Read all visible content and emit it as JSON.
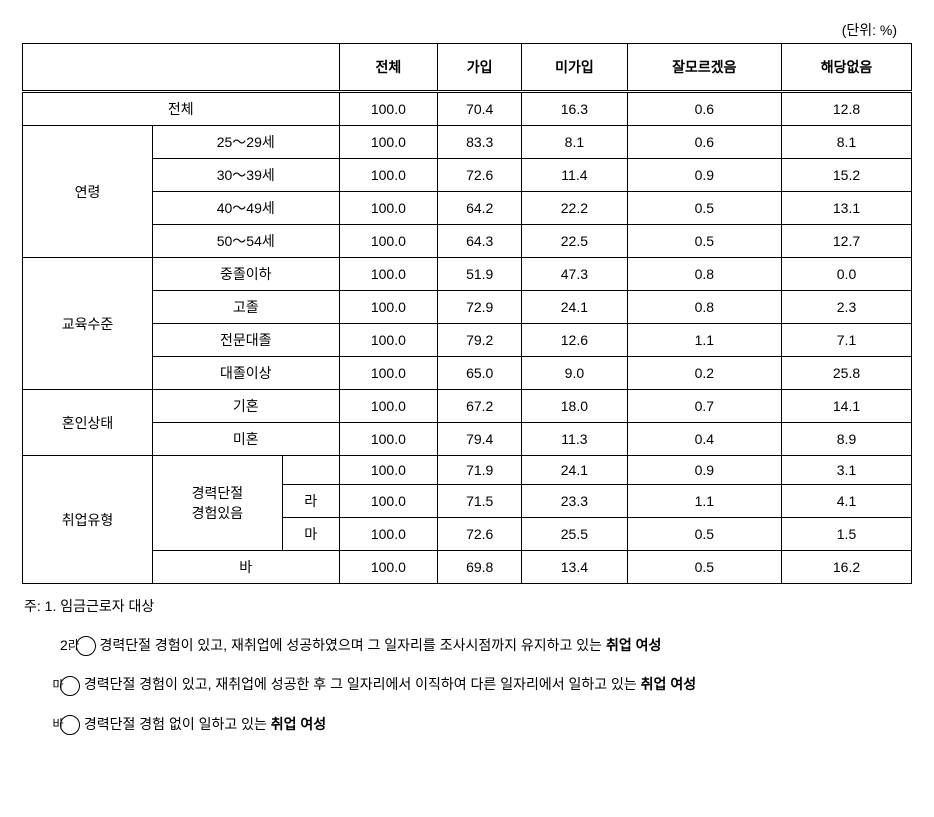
{
  "unit": "(단위: %)",
  "columns": [
    "전체",
    "가입",
    "미가입",
    "잘모르겠음",
    "해당없음"
  ],
  "rows": [
    {
      "group": null,
      "groupLabel": "전체",
      "groupColspan": 3,
      "label": null,
      "values": [
        "100.0",
        "70.4",
        "16.3",
        "0.6",
        "12.8"
      ]
    },
    {
      "group": "age",
      "groupLabel": "연령",
      "groupRowspan": 4,
      "label": "25～29세",
      "labelColspan": 2,
      "values": [
        "100.0",
        "83.3",
        "8.1",
        "0.6",
        "8.1"
      ]
    },
    {
      "group": "age",
      "label": "30～39세",
      "labelColspan": 2,
      "values": [
        "100.0",
        "72.6",
        "11.4",
        "0.9",
        "15.2"
      ]
    },
    {
      "group": "age",
      "label": "40～49세",
      "labelColspan": 2,
      "values": [
        "100.0",
        "64.2",
        "22.2",
        "0.5",
        "13.1"
      ]
    },
    {
      "group": "age",
      "label": "50～54세",
      "labelColspan": 2,
      "values": [
        "100.0",
        "64.3",
        "22.5",
        "0.5",
        "12.7"
      ]
    },
    {
      "group": "edu",
      "groupLabel": "교육수준",
      "groupRowspan": 4,
      "label": "중졸이하",
      "labelColspan": 2,
      "values": [
        "100.0",
        "51.9",
        "47.3",
        "0.8",
        "0.0"
      ]
    },
    {
      "group": "edu",
      "label": "고졸",
      "labelColspan": 2,
      "values": [
        "100.0",
        "72.9",
        "24.1",
        "0.8",
        "2.3"
      ]
    },
    {
      "group": "edu",
      "label": "전문대졸",
      "labelColspan": 2,
      "values": [
        "100.0",
        "79.2",
        "12.6",
        "1.1",
        "7.1"
      ]
    },
    {
      "group": "edu",
      "label": "대졸이상",
      "labelColspan": 2,
      "values": [
        "100.0",
        "65.0",
        "9.0",
        "0.2",
        "25.8"
      ]
    },
    {
      "group": "marital",
      "groupLabel": "혼인상태",
      "groupRowspan": 2,
      "label": "기혼",
      "labelColspan": 2,
      "values": [
        "100.0",
        "67.2",
        "18.0",
        "0.7",
        "14.1"
      ]
    },
    {
      "group": "marital",
      "label": "미혼",
      "labelColspan": 2,
      "values": [
        "100.0",
        "79.4",
        "11.3",
        "0.4",
        "8.9"
      ]
    },
    {
      "group": "emp",
      "groupLabel": "취업유형",
      "groupRowspan": 4,
      "subLabel1": "경력단절\n경험있음",
      "subRowspan": 3,
      "label": "",
      "values": [
        "100.0",
        "71.9",
        "24.1",
        "0.9",
        "3.1"
      ]
    },
    {
      "group": "emp",
      "label": "라",
      "values": [
        "100.0",
        "71.5",
        "23.3",
        "1.1",
        "4.1"
      ]
    },
    {
      "group": "emp",
      "label": "마",
      "values": [
        "100.0",
        "72.6",
        "25.5",
        "0.5",
        "1.5"
      ]
    },
    {
      "group": "emp",
      "label": "바",
      "labelColspan": 2,
      "values": [
        "100.0",
        "69.8",
        "13.4",
        "0.5",
        "16.2"
      ]
    }
  ],
  "notes": {
    "prefix": "주: ",
    "items": [
      {
        "num": "1.",
        "text": "임금근로자 대상"
      },
      {
        "num": "2.",
        "parts": [
          {
            "marker": "라",
            "text": "경력단절 경험이 있고, 재취업에 성공하였으며 그 일자리를 조사시점까지 유지하고 있는 ",
            "bold": "취업 여성"
          },
          {
            "marker": "마",
            "text": "경력단절 경험이 있고, 재취업에 성공한 후 그 일자리에서 이직하여 다른 일자리에서 일하고 있는 ",
            "bold": "취업 여성"
          },
          {
            "marker": "바",
            "text": "경력단절 경험 없이 일하고 있는 ",
            "bold": "취업 여성"
          }
        ]
      }
    ]
  }
}
